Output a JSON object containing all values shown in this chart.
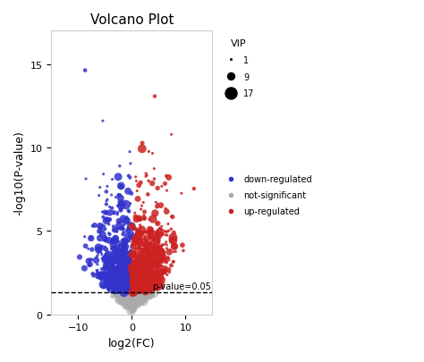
{
  "title": "Volcano Plot",
  "xlabel": "log2(FC)",
  "ylabel": "-log10(P-value)",
  "xlim": [
    -15,
    15
  ],
  "ylim": [
    0,
    17
  ],
  "pvalue_threshold": 1.3,
  "pvalue_label": "p-value=0.05",
  "fc_threshold": 0,
  "colors": {
    "down": "#3333cc",
    "up": "#cc2222",
    "ns": "#aaaaaa"
  },
  "vip_sizes": [
    1,
    9,
    17
  ],
  "vip_marker_sizes": [
    10,
    60,
    130
  ],
  "seed": 42,
  "n_total": 2000,
  "xticks": [
    -10,
    0,
    10
  ],
  "yticks": [
    0,
    5,
    10,
    15
  ],
  "background_color": "#ffffff",
  "legend_title_vip": "VIP",
  "legend_labels": [
    "down-regulated",
    "not-significant",
    "up-regulated"
  ]
}
